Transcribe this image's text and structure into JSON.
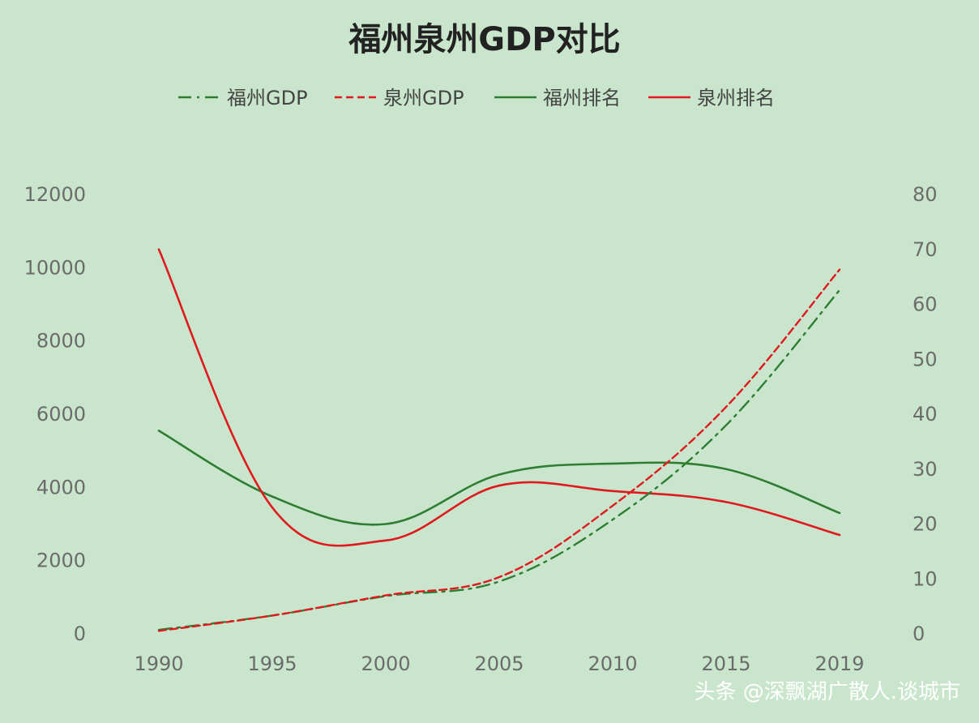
{
  "chart_data": {
    "type": "line",
    "title": "福州泉州GDP对比",
    "x": [
      1990,
      1995,
      2000,
      2005,
      2010,
      2015,
      2019
    ],
    "x_tick_labels": [
      "1990",
      "1995",
      "2000",
      "2005",
      "2010",
      "2015",
      "2019"
    ],
    "y_left_ticks": [
      "0",
      "2000",
      "4000",
      "6000",
      "8000",
      "10000",
      "12000"
    ],
    "y_left_range": [
      0,
      12000
    ],
    "y_right_ticks": [
      "0",
      "10",
      "20",
      "30",
      "40",
      "50",
      "60",
      "70",
      "80"
    ],
    "y_right_range": [
      0,
      80
    ],
    "grid": false,
    "legend_position": "top",
    "series": [
      {
        "name": "福州GDP",
        "axis": "left",
        "style": "dashdot",
        "color": "#2e7d32",
        "values": [
          110,
          500,
          1030,
          1430,
          3120,
          5700,
          9390
        ]
      },
      {
        "name": "泉州GDP",
        "axis": "left",
        "style": "dashed",
        "color": "#e0191e",
        "values": [
          80,
          500,
          1050,
          1550,
          3500,
          6200,
          9950
        ]
      },
      {
        "name": "福州排名",
        "axis": "right",
        "style": "solid",
        "color": "#2e7d32",
        "values": [
          37,
          25,
          20,
          29,
          31,
          30,
          22
        ]
      },
      {
        "name": "泉州排名",
        "axis": "right",
        "style": "solid",
        "color": "#e0191e",
        "values": [
          70,
          23,
          17,
          27,
          26,
          24,
          18
        ]
      }
    ]
  },
  "watermark": "头条 @深飘湖广散人.谈城市"
}
